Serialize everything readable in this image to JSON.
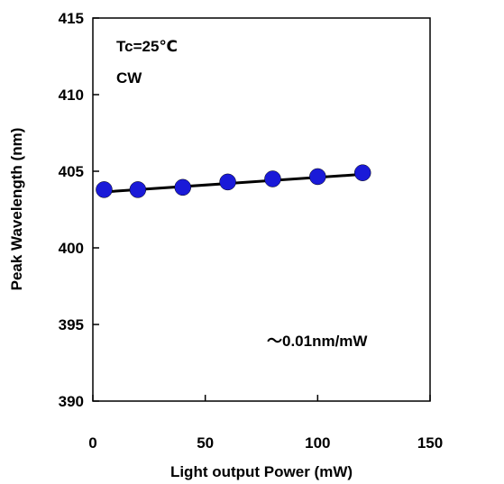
{
  "chart_data": {
    "type": "scatter",
    "xlabel": "Light output Power (mW)",
    "ylabel": "Peak Wavelength (nm)",
    "xlim": [
      0,
      150
    ],
    "ylim": [
      390,
      415
    ],
    "x_ticks": [
      0,
      50,
      100,
      150
    ],
    "y_ticks": [
      390,
      395,
      400,
      405,
      410,
      415
    ],
    "x_tick_labels": [
      "0",
      "50",
      "100",
      "150"
    ],
    "y_tick_labels": [
      "390",
      "395",
      "400",
      "405",
      "410",
      "415"
    ],
    "grid": false,
    "series": [
      {
        "type": "scatter",
        "color": "#1a1ad8",
        "x": [
          5,
          20,
          40,
          60,
          80,
          100,
          120
        ],
        "y": [
          403.8,
          403.8,
          403.95,
          404.3,
          404.5,
          404.65,
          404.9
        ]
      },
      {
        "type": "line",
        "color": "#000000",
        "x": [
          5,
          120
        ],
        "y": [
          403.65,
          404.8
        ]
      }
    ],
    "annotations": {
      "condition_temp": "Tc=25℃",
      "condition_mode": "CW",
      "slope": "～0.01nm/mW"
    }
  }
}
